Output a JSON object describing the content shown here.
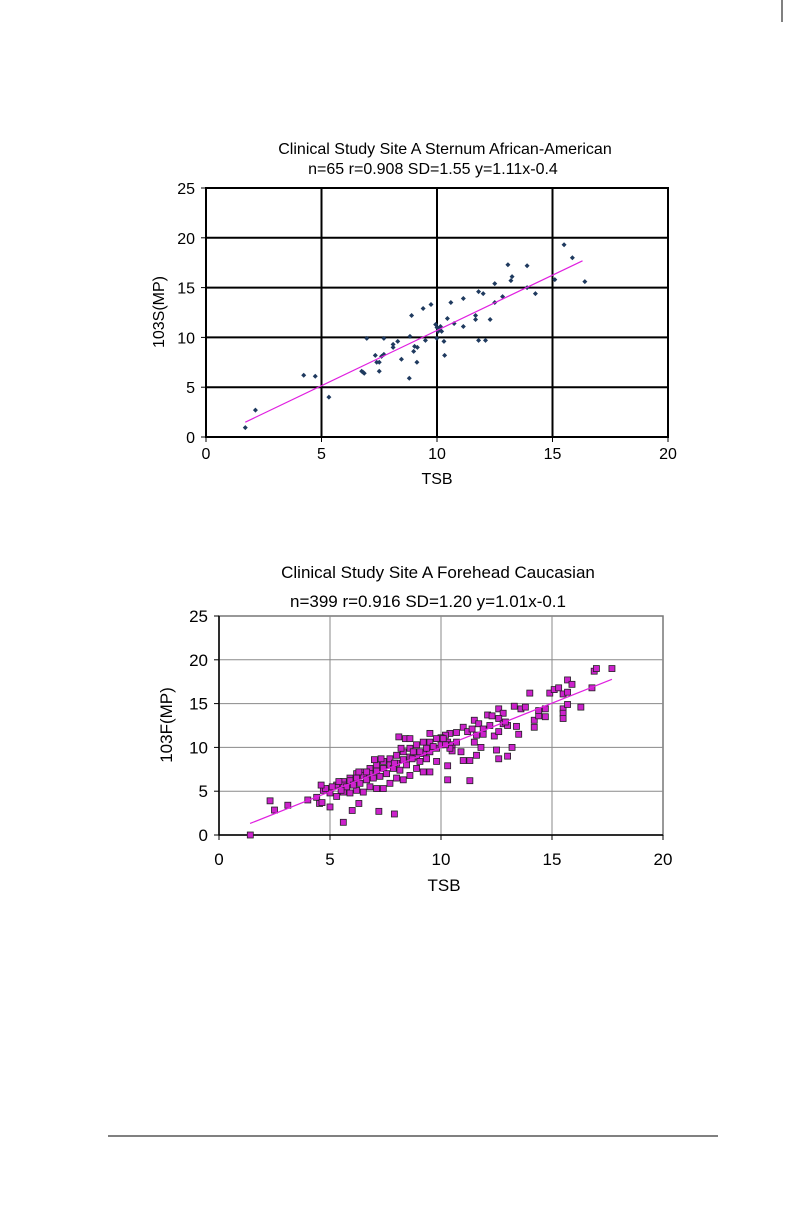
{
  "chart_data": [
    {
      "type": "scatter",
      "title": "Clinical Study Site A Sternum African-American",
      "subtitle": "n=65 r=0.908 SD=1.55 y=1.11x-0.4",
      "xlabel": "TSB",
      "ylabel": "103S(MP)",
      "xlim": [
        0,
        20
      ],
      "ylim": [
        0,
        25
      ],
      "xticks": [
        0,
        5,
        10,
        15,
        20
      ],
      "yticks": [
        0,
        5,
        10,
        15,
        20,
        25
      ],
      "grid": true,
      "marker": "diamond",
      "marker_color": "#1f3a5f",
      "trendline": {
        "slope": 1.11,
        "intercept": -0.4,
        "x_range": [
          1.7,
          16.3
        ],
        "color": "#e020e0"
      },
      "points": [
        [
          1.7,
          0.94
        ],
        [
          2.14,
          2.7
        ],
        [
          4.23,
          6.2
        ],
        [
          4.73,
          6.1
        ],
        [
          5.32,
          4.0
        ],
        [
          6.74,
          6.6
        ],
        [
          6.8,
          6.5
        ],
        [
          6.85,
          6.4
        ],
        [
          6.96,
          9.9
        ],
        [
          7.33,
          8.2
        ],
        [
          7.39,
          7.5
        ],
        [
          7.5,
          7.5
        ],
        [
          7.5,
          6.6
        ],
        [
          7.6,
          8.1
        ],
        [
          7.7,
          8.3
        ],
        [
          7.7,
          9.9
        ],
        [
          8.1,
          9.3
        ],
        [
          8.1,
          9.0
        ],
        [
          8.3,
          9.6
        ],
        [
          8.46,
          7.8
        ],
        [
          8.8,
          5.9
        ],
        [
          8.83,
          10.1
        ],
        [
          8.9,
          12.2
        ],
        [
          8.99,
          8.6
        ],
        [
          9.03,
          9.1
        ],
        [
          9.15,
          9.0
        ],
        [
          9.13,
          7.5
        ],
        [
          9.4,
          12.9
        ],
        [
          9.5,
          9.7
        ],
        [
          9.74,
          13.3
        ],
        [
          9.94,
          11.3
        ],
        [
          9.99,
          9.9
        ],
        [
          10.0,
          11.0
        ],
        [
          10.1,
          10.8
        ],
        [
          10.05,
          10.6
        ],
        [
          10.2,
          10.6
        ],
        [
          10.15,
          11.1
        ],
        [
          10.3,
          9.6
        ],
        [
          10.33,
          8.2
        ],
        [
          10.45,
          11.9
        ],
        [
          10.6,
          13.5
        ],
        [
          10.74,
          11.4
        ],
        [
          11.14,
          13.9
        ],
        [
          11.14,
          11.1
        ],
        [
          11.67,
          12.2
        ],
        [
          11.67,
          11.8
        ],
        [
          11.8,
          14.6
        ],
        [
          11.8,
          9.7
        ],
        [
          12.0,
          14.4
        ],
        [
          12.1,
          9.7
        ],
        [
          12.3,
          11.8
        ],
        [
          12.5,
          15.4
        ],
        [
          12.5,
          13.5
        ],
        [
          12.84,
          14.1
        ],
        [
          13.07,
          17.3
        ],
        [
          13.2,
          15.7
        ],
        [
          13.25,
          16.1
        ],
        [
          13.9,
          17.2
        ],
        [
          13.9,
          15.0
        ],
        [
          14.26,
          14.4
        ],
        [
          15.1,
          15.8
        ],
        [
          15.5,
          19.3
        ],
        [
          15.86,
          18.0
        ],
        [
          16.4,
          15.6
        ]
      ]
    },
    {
      "type": "scatter",
      "title": "Clinical Study Site A Forehead Caucasian",
      "subtitle": "n=399 r=0.916 SD=1.20 y=1.01x-0.1",
      "xlabel": "TSB",
      "ylabel": "103F(MP)",
      "xlim": [
        0,
        20
      ],
      "ylim": [
        0,
        25
      ],
      "xticks": [
        0,
        5,
        10,
        15,
        20
      ],
      "yticks": [
        0,
        5,
        10,
        15,
        20,
        25
      ],
      "grid": true,
      "marker": "square",
      "marker_color": "#cc22cc",
      "trendline": {
        "slope": 1.01,
        "intercept": -0.1,
        "x_range": [
          1.4,
          17.7
        ],
        "color": "#e020e0"
      },
      "points": [
        [
          1.41,
          0
        ],
        [
          2.3,
          3.9
        ],
        [
          2.5,
          2.85
        ],
        [
          3.1,
          3.4
        ],
        [
          4.0,
          4.0
        ],
        [
          4.4,
          4.3
        ],
        [
          4.53,
          3.6
        ],
        [
          4.64,
          3.7
        ],
        [
          5.0,
          3.2
        ],
        [
          5.6,
          1.45
        ],
        [
          6.0,
          2.8
        ],
        [
          6.3,
          3.6
        ],
        [
          7.2,
          2.7
        ],
        [
          7.9,
          2.4
        ],
        [
          8.1,
          11.2
        ],
        [
          8.4,
          11.0
        ],
        [
          8.6,
          11.0
        ],
        [
          9.5,
          11.6
        ],
        [
          10.3,
          6.3
        ],
        [
          11.3,
          6.2
        ],
        [
          10.3,
          7.9
        ],
        [
          11.0,
          8.5
        ],
        [
          11.3,
          8.5
        ],
        [
          11.6,
          9.1
        ],
        [
          11.8,
          10.0
        ],
        [
          12.5,
          9.7
        ],
        [
          12.6,
          8.7
        ],
        [
          13.0,
          9.0
        ],
        [
          13.2,
          10.0
        ],
        [
          13.5,
          11.5
        ],
        [
          13.4,
          12.4
        ],
        [
          14.2,
          12.3
        ],
        [
          14.2,
          13.1
        ],
        [
          14.4,
          13.6
        ],
        [
          14.7,
          13.5
        ],
        [
          14.0,
          16.2
        ],
        [
          13.3,
          14.7
        ],
        [
          13.6,
          14.4
        ],
        [
          13.8,
          14.6
        ],
        [
          14.4,
          14.2
        ],
        [
          14.7,
          14.4
        ],
        [
          14.9,
          16.2
        ],
        [
          15.1,
          16.6
        ],
        [
          15.3,
          16.8
        ],
        [
          15.5,
          16.1
        ],
        [
          15.7,
          16.3
        ],
        [
          15.7,
          17.7
        ],
        [
          15.9,
          17.2
        ],
        [
          15.5,
          14.4
        ],
        [
          15.5,
          13.9
        ],
        [
          15.5,
          13.3
        ],
        [
          15.7,
          14.9
        ],
        [
          16.3,
          14.6
        ],
        [
          16.8,
          16.8
        ],
        [
          16.9,
          18.7
        ],
        [
          17.0,
          19.0
        ],
        [
          17.7,
          19.0
        ],
        [
          12.1,
          13.7
        ],
        [
          12.3,
          13.6
        ],
        [
          12.6,
          14.4
        ],
        [
          12.8,
          13.9
        ],
        [
          12.6,
          13.3
        ],
        [
          12.8,
          12.7
        ],
        [
          13.0,
          12.5
        ],
        [
          12.9,
          12.9
        ],
        [
          11.5,
          13.1
        ],
        [
          11.7,
          12.7
        ],
        [
          11.9,
          12.1
        ],
        [
          12.2,
          12.5
        ],
        [
          12.4,
          11.3
        ],
        [
          12.6,
          11.8
        ],
        [
          11.0,
          12.3
        ],
        [
          11.2,
          11.8
        ],
        [
          11.4,
          12.1
        ],
        [
          11.6,
          11.4
        ],
        [
          11.9,
          11.5
        ],
        [
          11.5,
          10.6
        ],
        [
          10.7,
          11.7
        ],
        [
          10.4,
          11.6
        ],
        [
          10.2,
          11.4
        ],
        [
          10.0,
          11.1
        ],
        [
          10.3,
          10.6
        ],
        [
          10.5,
          10.3
        ],
        [
          10.7,
          10.6
        ],
        [
          10.5,
          9.6
        ],
        [
          10.9,
          9.5
        ],
        [
          9.8,
          11.0
        ],
        [
          9.5,
          10.6
        ],
        [
          9.2,
          10.6
        ],
        [
          8.9,
          10.3
        ],
        [
          8.6,
          9.9
        ],
        [
          8.3,
          9.5
        ],
        [
          8.0,
          9.1
        ],
        [
          7.7,
          8.7
        ],
        [
          7.4,
          8.4
        ],
        [
          7.1,
          8.0
        ],
        [
          6.8,
          7.6
        ],
        [
          6.5,
          7.2
        ],
        [
          6.2,
          7.0
        ],
        [
          5.9,
          6.5
        ],
        [
          5.6,
          6.1
        ],
        [
          5.3,
          5.7
        ],
        [
          5.0,
          5.3
        ],
        [
          4.7,
          5.1
        ],
        [
          9.8,
          8.4
        ],
        [
          9.5,
          7.2
        ],
        [
          9.2,
          7.2
        ],
        [
          8.9,
          7.6
        ],
        [
          8.6,
          6.8
        ],
        [
          8.3,
          6.3
        ],
        [
          8.0,
          6.5
        ],
        [
          7.7,
          5.9
        ],
        [
          7.4,
          5.3
        ],
        [
          7.1,
          5.3
        ],
        [
          6.8,
          5.5
        ],
        [
          6.5,
          4.9
        ],
        [
          6.2,
          5.1
        ],
        [
          5.9,
          4.8
        ],
        [
          5.6,
          4.9
        ],
        [
          5.3,
          4.4
        ],
        [
          5.0,
          4.8
        ],
        [
          4.8,
          5.3
        ],
        [
          9.8,
          9.9
        ],
        [
          9.5,
          9.5
        ],
        [
          9.2,
          9.3
        ],
        [
          8.9,
          8.9
        ],
        [
          8.6,
          8.9
        ],
        [
          8.3,
          8.6
        ],
        [
          8.0,
          8.2
        ],
        [
          7.7,
          8.0
        ],
        [
          7.4,
          7.6
        ],
        [
          7.1,
          7.3
        ],
        [
          6.8,
          7.0
        ],
        [
          6.5,
          6.8
        ],
        [
          6.2,
          6.5
        ],
        [
          5.9,
          6.2
        ],
        [
          5.6,
          5.7
        ],
        [
          5.4,
          6.1
        ],
        [
          5.1,
          5.5
        ],
        [
          4.6,
          5.7
        ],
        [
          10.0,
          10.3
        ],
        [
          9.65,
          10.1
        ],
        [
          9.35,
          8.7
        ],
        [
          9.05,
          8.4
        ],
        [
          8.75,
          9.5
        ],
        [
          8.45,
          8.0
        ],
        [
          8.15,
          7.4
        ],
        [
          7.85,
          7.6
        ],
        [
          7.55,
          7.0
        ],
        [
          7.25,
          6.7
        ],
        [
          6.95,
          6.5
        ],
        [
          6.65,
          6.3
        ],
        [
          6.35,
          5.9
        ],
        [
          6.05,
          5.7
        ],
        [
          5.75,
          5.5
        ],
        [
          5.5,
          5.1
        ],
        [
          10.1,
          11.0
        ],
        [
          10.4,
          9.9
        ],
        [
          10.2,
          10.3
        ],
        [
          9.35,
          9.9
        ],
        [
          9.05,
          9.5
        ],
        [
          8.7,
          8.7
        ],
        [
          8.2,
          9.9
        ],
        [
          7.9,
          8.2
        ],
        [
          7.3,
          8.7
        ],
        [
          7.0,
          8.6
        ],
        [
          6.65,
          7.2
        ],
        [
          6.3,
          7.2
        ]
      ]
    }
  ]
}
